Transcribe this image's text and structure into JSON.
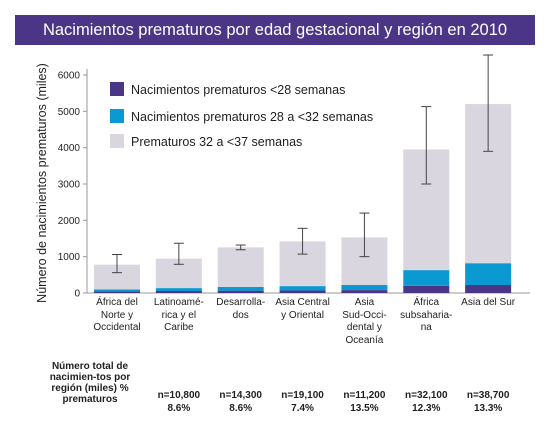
{
  "header": {
    "title": "Nacimientos prematuros por edad gestacional y región en 2010"
  },
  "footer": {
    "label": "Número total de nacimien-tos por región (miles) % prematuros",
    "values": [
      {
        "n": "",
        "pct": ""
      },
      {
        "n": "n=10,800",
        "pct": "8.6%"
      },
      {
        "n": "n=14,300",
        "pct": "8.6%"
      },
      {
        "n": "n=19,100",
        "pct": "7.4%"
      },
      {
        "n": "n=11,200",
        "pct": "13.5%"
      },
      {
        "n": "n=32,100",
        "pct": "12.3%"
      },
      {
        "n": "n=38,700",
        "pct": "13.3%"
      }
    ]
  },
  "colors": {
    "title_bg": "#4b3587",
    "lt28": "#4b3587",
    "w28_32": "#0a9ad1",
    "w32_37": "#d9d6e0",
    "axis": "#999999",
    "error": "#444444"
  },
  "chart_data": {
    "type": "bar",
    "stacked": true,
    "categories": [
      "África del Norte y Occidental",
      "Latinoamé-rica y el Caribe",
      "Desarrolla-dos",
      "Asia Central y Oriental",
      "Asia Sud-Occi-dental y Oceanía",
      "África subsahariana",
      "Asia del Sur"
    ],
    "category_lines": [
      [
        "África del",
        "Norte y",
        "Occidental"
      ],
      [
        "Latinoamé-",
        "rica y el",
        "Caribe"
      ],
      [
        "Desarrolla-",
        "dos"
      ],
      [
        "Asia Central",
        "y Oriental"
      ],
      [
        "Asia",
        "Sud-Occi-",
        "dental y",
        "Oceanía"
      ],
      [
        "África",
        "subsahaaria-",
        "na"
      ],
      [
        "Asia del Sur"
      ]
    ],
    "series": [
      {
        "name": "Nacimientos prematuros <28 semanas",
        "values": [
          40,
          55,
          65,
          70,
          80,
          200,
          220
        ]
      },
      {
        "name": "Nacimientos prematuros 28 a <32 semanas",
        "values": [
          60,
          80,
          100,
          120,
          140,
          430,
          600
        ]
      },
      {
        "name": "Prematuros 32 a <37 semanas",
        "values": [
          680,
          810,
          1090,
          1230,
          1310,
          3320,
          4380
        ]
      }
    ],
    "totals": [
      780,
      945,
      1255,
      1420,
      1530,
      3950,
      5200
    ],
    "error_bars": [
      {
        "low": 560,
        "high": 1060
      },
      {
        "low": 790,
        "high": 1370
      },
      {
        "low": 1190,
        "high": 1320
      },
      {
        "low": 1070,
        "high": 1780
      },
      {
        "low": 1000,
        "high": 2200
      },
      {
        "low": 3000,
        "high": 5130
      },
      {
        "low": 3900,
        "high": 6550
      }
    ],
    "ylabel": "Número de nacimientos prematuros (miles)",
    "xlabel": "",
    "ylim": [
      0,
      6000
    ],
    "yticks": [
      0,
      1000,
      2000,
      3000,
      4000,
      5000,
      6000
    ],
    "ytick_labels": [
      "0",
      "1000",
      "2000",
      "3000",
      "4000",
      "5000",
      "6000"
    ],
    "legend_position": "top-left",
    "grid": false
  }
}
